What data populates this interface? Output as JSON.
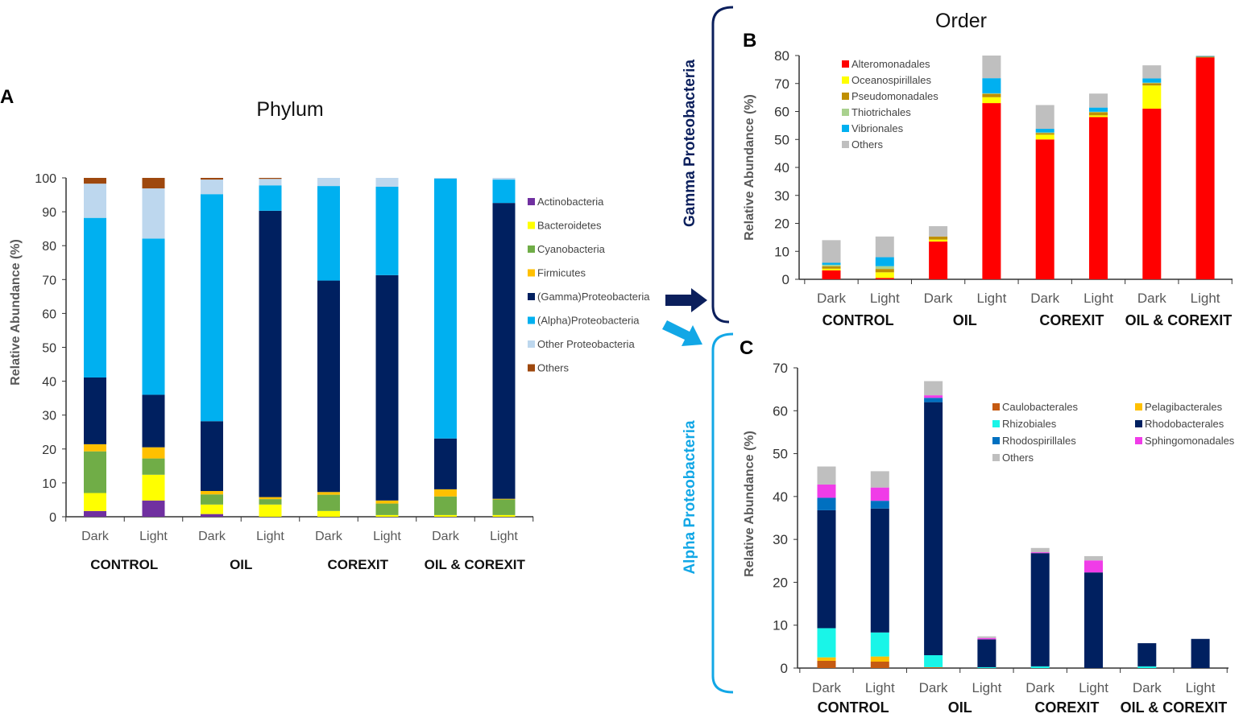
{
  "panel_letters": [
    "A",
    "B",
    "C"
  ],
  "side_labels": {
    "gamma": "Gamma Proteobacteria",
    "alpha": "Alpha Proteobacteria"
  },
  "colors": {
    "gamma_bracket": "#0b1f5c",
    "alpha_bracket": "#12a7e6"
  },
  "chart_data": [
    {
      "type": "bar",
      "stacked": true,
      "title": "Phylum",
      "ylabel": "Relative Abundance (%)",
      "xlabel": "",
      "ylim": [
        0,
        100
      ],
      "yticks": [
        0,
        10,
        20,
        30,
        40,
        50,
        60,
        70,
        80,
        90,
        100
      ],
      "categories": [
        "Dark",
        "Light",
        "Dark",
        "Light",
        "Dark",
        "Light",
        "Dark",
        "Light"
      ],
      "groups": [
        "CONTROL",
        "OIL",
        "COREXIT",
        "OIL & COREXIT"
      ],
      "legend_position": "right",
      "series": [
        {
          "name": "Actinobacteria",
          "color": "#7030a0",
          "values": [
            1.7,
            4.8,
            0.8,
            0,
            0,
            0,
            0,
            0
          ]
        },
        {
          "name": "Bacteroidetes",
          "color": "#ffff00",
          "values": [
            5.3,
            7.6,
            2.8,
            3.6,
            1.7,
            0.5,
            0.5,
            0.5
          ]
        },
        {
          "name": "Cyanobacteria",
          "color": "#70ad47",
          "values": [
            12.3,
            4.8,
            3.0,
            1.6,
            4.8,
            3.4,
            5.5,
            4.6
          ]
        },
        {
          "name": "Firmicutes",
          "color": "#ffc000",
          "values": [
            2.1,
            3.3,
            1.0,
            0.6,
            0.8,
            0.9,
            2.1,
            0.2
          ]
        },
        {
          "name": "(Gamma)Proteobacteria",
          "color": "#002060",
          "values": [
            19.7,
            15.5,
            20.6,
            84.5,
            62.4,
            66.5,
            15.0,
            87.3
          ]
        },
        {
          "name": "(Alpha)Proteobacteria",
          "color": "#00b0f0",
          "values": [
            47.1,
            46.1,
            67.0,
            7.5,
            27.9,
            26.1,
            76.7,
            6.9
          ]
        },
        {
          "name": "Other Proteobacteria",
          "color": "#bdd7ee",
          "values": [
            10.1,
            14.8,
            4.3,
            1.9,
            2.4,
            2.6,
            0.2,
            0.5
          ]
        },
        {
          "name": "Others",
          "color": "#9e480e",
          "values": [
            1.7,
            3.1,
            0.5,
            0.3,
            0,
            0,
            0,
            0
          ]
        }
      ]
    },
    {
      "type": "bar",
      "stacked": true,
      "title": "Order",
      "ylabel": "Relative Abundance (%)",
      "xlabel": "",
      "ylim": [
        0,
        80
      ],
      "yticks": [
        0,
        10,
        20,
        30,
        40,
        50,
        60,
        70,
        80
      ],
      "categories": [
        "Dark",
        "Light",
        "Dark",
        "Light",
        "Dark",
        "Light",
        "Dark",
        "Light"
      ],
      "groups": [
        "CONTROL",
        "OIL",
        "COREXIT",
        "OIL & COREXIT"
      ],
      "legend_position": "top-left",
      "series": [
        {
          "name": "Alteromonadales",
          "color": "#ff0000",
          "values": [
            3.2,
            0.5,
            13.5,
            63.0,
            50.0,
            58.0,
            61.0,
            79.3
          ]
        },
        {
          "name": "Oceanospirillales",
          "color": "#ffff00",
          "values": [
            0.6,
            2.0,
            0.7,
            2.1,
            1.7,
            0.6,
            8.3,
            0
          ]
        },
        {
          "name": "Pseudomonadales",
          "color": "#bf8f00",
          "values": [
            0.8,
            1.2,
            1.1,
            1.2,
            0.6,
            1.1,
            0.8,
            0.3
          ]
        },
        {
          "name": "Thiotrichales",
          "color": "#a9d18e",
          "values": [
            0.6,
            1.0,
            0,
            0.2,
            0.2,
            0.2,
            0.2,
            0
          ]
        },
        {
          "name": "Vibrionales",
          "color": "#00b0f0",
          "values": [
            0.7,
            3.2,
            0,
            5.4,
            1.3,
            1.5,
            1.5,
            0.2
          ]
        },
        {
          "name": "Others",
          "color": "#bfbfbf",
          "values": [
            8.1,
            7.4,
            3.7,
            8.1,
            8.5,
            5.0,
            4.7,
            0.2
          ]
        }
      ]
    },
    {
      "type": "bar",
      "stacked": true,
      "title": "",
      "ylabel": "Relative Abundance (%)",
      "xlabel": "",
      "ylim": [
        0,
        70
      ],
      "yticks": [
        0,
        10,
        20,
        30,
        40,
        50,
        60,
        70
      ],
      "categories": [
        "Dark",
        "Light",
        "Dark",
        "Light",
        "Dark",
        "Light",
        "Dark",
        "Light"
      ],
      "groups": [
        "CONTROL",
        "OIL",
        "COREXIT",
        "OIL & COREXIT"
      ],
      "legend_position": "top-right",
      "series": [
        {
          "name": "Caulobacterales",
          "color": "#c55a11",
          "values": [
            1.7,
            1.5,
            0.2,
            0,
            0,
            0,
            0,
            0
          ]
        },
        {
          "name": "Pelagibacterales",
          "color": "#ffc000",
          "values": [
            0.8,
            1.2,
            0,
            0,
            0,
            0,
            0,
            0
          ]
        },
        {
          "name": "Rhizobiales",
          "color": "#19f5e8",
          "values": [
            6.8,
            5.6,
            2.8,
            0.2,
            0.4,
            0,
            0.4,
            0
          ]
        },
        {
          "name": "Rhodobacterales",
          "color": "#002060",
          "values": [
            27.5,
            28.9,
            59.0,
            6.5,
            26.4,
            22.3,
            5.4,
            6.8
          ]
        },
        {
          "name": "Rhodospirillales",
          "color": "#0070c0",
          "values": [
            2.9,
            1.8,
            1.0,
            0,
            0,
            0,
            0,
            0
          ]
        },
        {
          "name": "Sphingomonadales",
          "color": "#f03ce8",
          "values": [
            3.1,
            3.1,
            0.6,
            0.3,
            0.2,
            2.8,
            0,
            0
          ]
        },
        {
          "name": "Others",
          "color": "#bfbfbf",
          "values": [
            4.2,
            3.8,
            3.3,
            0.4,
            1.0,
            1.0,
            0,
            0
          ]
        }
      ]
    }
  ]
}
